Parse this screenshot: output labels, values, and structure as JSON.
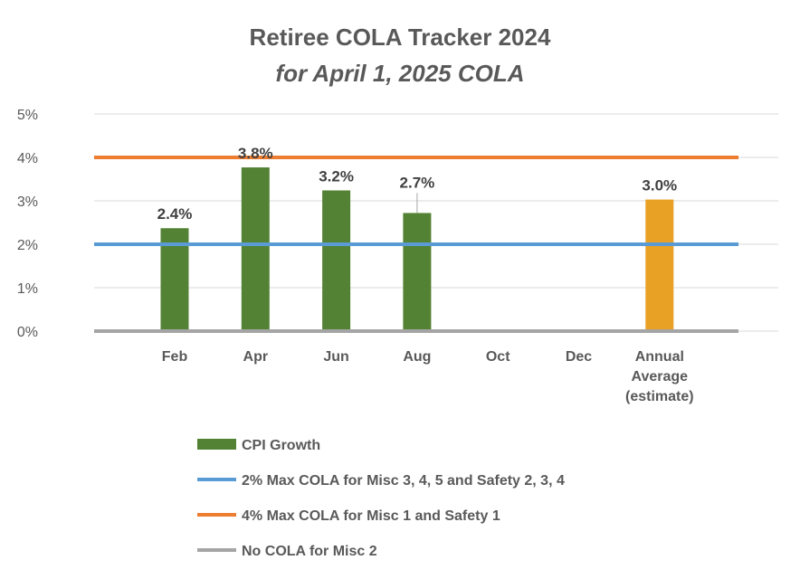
{
  "chart_data": {
    "type": "bar",
    "title": "Retiree COLA Tracker 2024",
    "subtitle": "for April 1, 2025 COLA",
    "categories": [
      [
        "Feb"
      ],
      [
        "Apr"
      ],
      [
        "Jun"
      ],
      [
        "Aug"
      ],
      [
        "Oct"
      ],
      [
        "Dec"
      ],
      [
        "Annual",
        "Average",
        "(estimate)"
      ]
    ],
    "ylim": [
      0,
      5
    ],
    "yticks": [
      {
        "value": 0,
        "label": "0%"
      },
      {
        "value": 1,
        "label": "1%"
      },
      {
        "value": 2,
        "label": "2%"
      },
      {
        "value": 3,
        "label": "3%"
      },
      {
        "value": 4,
        "label": "4%"
      },
      {
        "value": 5,
        "label": "5%"
      }
    ],
    "grid": true,
    "bars": [
      {
        "category_index": 0,
        "value": 2.37,
        "label": "2.4%",
        "color": "#548235"
      },
      {
        "category_index": 1,
        "value": 3.77,
        "label": "3.8%",
        "color": "#548235"
      },
      {
        "category_index": 2,
        "value": 3.24,
        "label": "3.2%",
        "color": "#548235"
      },
      {
        "category_index": 3,
        "value": 2.72,
        "label": "2.7%",
        "color": "#548235",
        "leader_line": true
      },
      {
        "category_index": 6,
        "value": 3.03,
        "label": "3.0%",
        "color": "#E9A125"
      }
    ],
    "reference_lines": [
      {
        "name": "2% Max COLA for Misc 3, 4, 5 and Safety 2, 3, 4",
        "value": 2,
        "color": "#5B9BD5"
      },
      {
        "name": "4% Max COLA for Misc 1 and Safety 1",
        "value": 4,
        "color": "#ED7D31"
      },
      {
        "name": "No COLA for Misc 2",
        "value": 0,
        "color": "#A5A5A5"
      }
    ],
    "legend": {
      "position": "bottom",
      "entries": [
        {
          "name": "CPI Growth",
          "kind": "bar",
          "color": "#548235"
        },
        {
          "name": "2% Max COLA for Misc 3, 4, 5 and Safety 2, 3, 4",
          "kind": "line",
          "color": "#5B9BD5"
        },
        {
          "name": "4% Max COLA for Misc 1 and Safety 1",
          "kind": "line",
          "color": "#ED7D31"
        },
        {
          "name": "No COLA for Misc 2",
          "kind": "line",
          "color": "#A5A5A5"
        }
      ]
    }
  }
}
